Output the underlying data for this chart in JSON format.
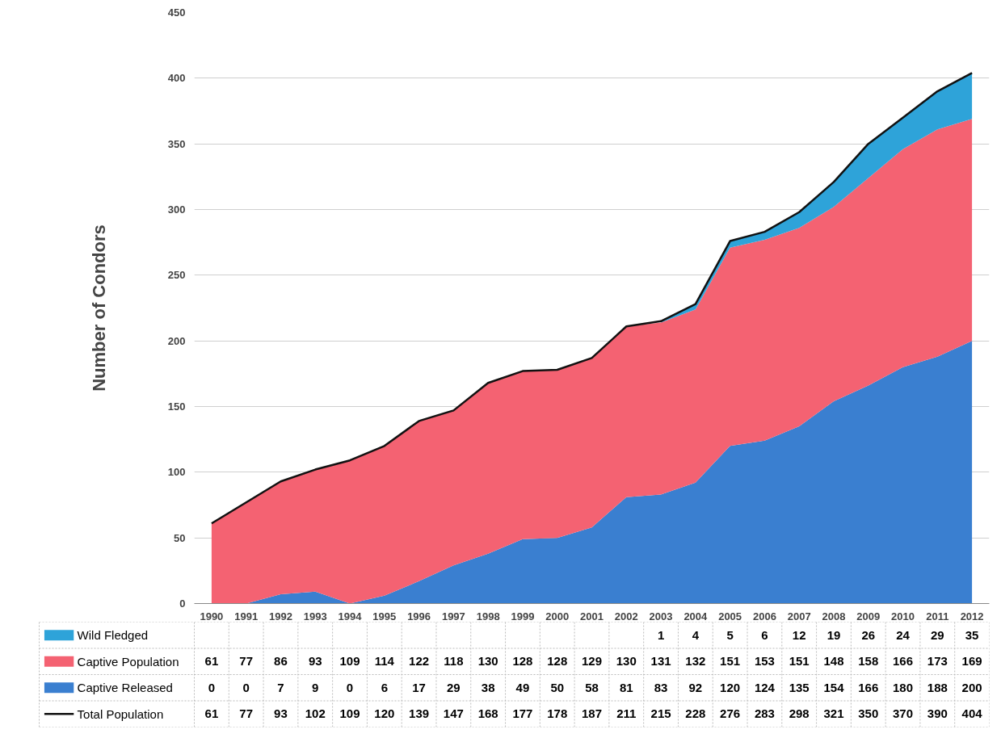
{
  "chart_data": {
    "type": "area",
    "stacked": true,
    "ylabel": "Number of Condors",
    "categories": [
      "1990",
      "1991",
      "1992",
      "1993",
      "1994",
      "1995",
      "1996",
      "1997",
      "1998",
      "1999",
      "2000",
      "2001",
      "2002",
      "2003",
      "2004",
      "2005",
      "2006",
      "2007",
      "2008",
      "2009",
      "2010",
      "2011",
      "2012"
    ],
    "series": [
      {
        "name": "Captive Released",
        "color": "#3a7fd0",
        "values": [
          0,
          0,
          7,
          9,
          0,
          6,
          17,
          29,
          38,
          49,
          50,
          58,
          81,
          83,
          92,
          120,
          124,
          135,
          154,
          166,
          180,
          188,
          200
        ]
      },
      {
        "name": "Captive Population",
        "color": "#f46272",
        "values": [
          61,
          77,
          86,
          93,
          109,
          114,
          122,
          118,
          130,
          128,
          128,
          129,
          130,
          131,
          132,
          151,
          153,
          151,
          148,
          158,
          166,
          173,
          169
        ]
      },
      {
        "name": "Wild Fledged",
        "color": "#2ea3d9",
        "values": [
          null,
          null,
          null,
          null,
          null,
          null,
          null,
          null,
          null,
          null,
          null,
          null,
          null,
          1,
          4,
          5,
          6,
          12,
          19,
          26,
          24,
          29,
          35
        ]
      },
      {
        "name": "Total Population",
        "type": "line",
        "color": "#111111",
        "values": [
          61,
          77,
          93,
          102,
          109,
          120,
          139,
          147,
          168,
          177,
          178,
          187,
          211,
          215,
          228,
          276,
          283,
          298,
          321,
          350,
          370,
          390,
          404
        ]
      }
    ],
    "ylim": [
      0,
      450
    ],
    "yticks": [
      0,
      50,
      100,
      150,
      200,
      250,
      300,
      350,
      400,
      450
    ],
    "grid": "y",
    "legend": "bottom",
    "data_labels": true
  }
}
